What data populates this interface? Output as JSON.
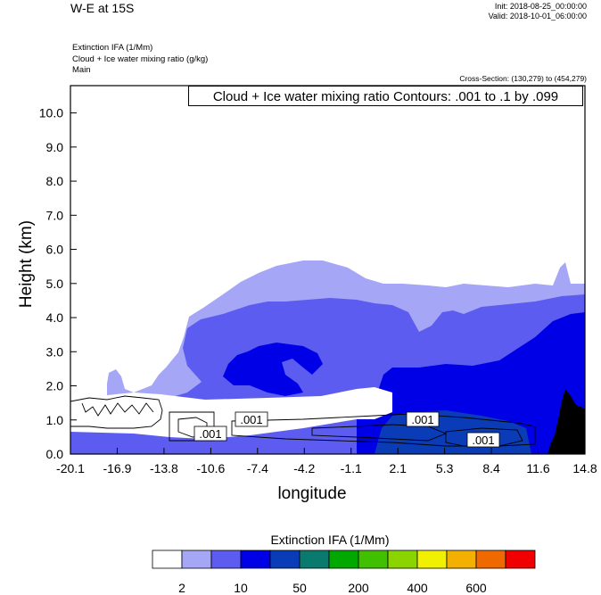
{
  "header": {
    "title": "W-E at 15S",
    "init": "Init: 2018-08-25_00:00:00",
    "valid": "Valid: 2018-10-01_06:00:00"
  },
  "fields": {
    "line1": "Extinction IFA   (1/Mm)",
    "line2": "Cloud + Ice water mixing ratio   (g/kg)",
    "line3": "Main"
  },
  "cross_section": "Cross-Section: (130,279) to (454,279)",
  "contour_info": "Cloud + Ice water mixing ratio Contours: .001 to .1 by .099",
  "colorbar": {
    "title": "Extinction IFA  (1/Mm)",
    "colors": [
      "#ffffff",
      "#a6a6f7",
      "#5c5cf0",
      "#0000e6",
      "#0a3cb8",
      "#0a7a6e",
      "#00a800",
      "#40c000",
      "#8cd400",
      "#f0f000",
      "#f4b000",
      "#f06800",
      "#f00000"
    ],
    "labels": [
      "2",
      "10",
      "50",
      "200",
      "400",
      "600"
    ]
  },
  "chart_data": {
    "type": "contour",
    "xlabel": "longitude",
    "ylabel": "Height (km)",
    "x_ticks": [
      "-20.1",
      "-16.9",
      "-13.8",
      "-10.6",
      "-7.4",
      "-4.2",
      "-1.1",
      "2.1",
      "5.3",
      "8.4",
      "11.6",
      "14.8"
    ],
    "y_ticks": [
      "0.0",
      "1.0",
      "2.0",
      "3.0",
      "4.0",
      "5.0",
      "6.0",
      "7.0",
      "8.0",
      "9.0",
      "10.0"
    ],
    "xlim": [
      -20.1,
      14.8
    ],
    "ylim": [
      0,
      10.8
    ],
    "contour_labels": [
      ".001",
      ".001",
      ".001",
      ".001"
    ]
  }
}
